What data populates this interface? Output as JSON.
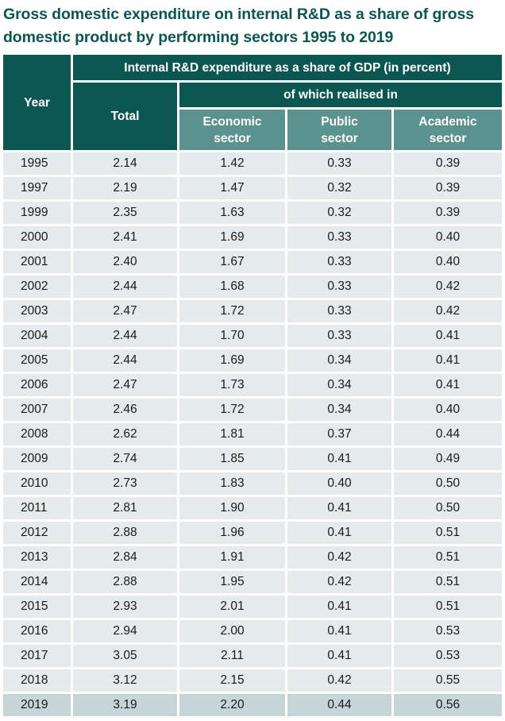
{
  "title": "Gross domestic expenditure on internal R&D as a share of gross domestic product by performing sectors 1995 to 2019",
  "headers": {
    "year": "Year",
    "group": "Internal R&D expenditure as a share of GDP (in percent)",
    "total": "Total",
    "subgroup": "of which realised in",
    "economic_line1": "Economic",
    "economic_line2": "sector",
    "public_line1": "Public",
    "public_line2": "sector",
    "academic_line1": "Academic",
    "academic_line2": "sector"
  },
  "rows": [
    {
      "year": "1995",
      "total": "2.14",
      "economic": "1.42",
      "public": "0.33",
      "academic": "0.39"
    },
    {
      "year": "1997",
      "total": "2.19",
      "economic": "1.47",
      "public": "0.32",
      "academic": "0.39"
    },
    {
      "year": "1999",
      "total": "2.35",
      "economic": "1.63",
      "public": "0.32",
      "academic": "0.39"
    },
    {
      "year": "2000",
      "total": "2.41",
      "economic": "1.69",
      "public": "0.33",
      "academic": "0.40"
    },
    {
      "year": "2001",
      "total": "2.40",
      "economic": "1.67",
      "public": "0.33",
      "academic": "0.40"
    },
    {
      "year": "2002",
      "total": "2.44",
      "economic": "1.68",
      "public": "0.33",
      "academic": "0.42"
    },
    {
      "year": "2003",
      "total": "2.47",
      "economic": "1.72",
      "public": "0.33",
      "academic": "0.42"
    },
    {
      "year": "2004",
      "total": "2.44",
      "economic": "1.70",
      "public": "0.33",
      "academic": "0.41"
    },
    {
      "year": "2005",
      "total": "2.44",
      "economic": "1.69",
      "public": "0.34",
      "academic": "0.41"
    },
    {
      "year": "2006",
      "total": "2.47",
      "economic": "1.73",
      "public": "0.34",
      "academic": "0.41"
    },
    {
      "year": "2007",
      "total": "2.46",
      "economic": "1.72",
      "public": "0.34",
      "academic": "0.40"
    },
    {
      "year": "2008",
      "total": "2.62",
      "economic": "1.81",
      "public": "0.37",
      "academic": "0.44"
    },
    {
      "year": "2009",
      "total": "2.74",
      "economic": "1.85",
      "public": "0.41",
      "academic": "0.49"
    },
    {
      "year": "2010",
      "total": "2.73",
      "economic": "1.83",
      "public": "0.40",
      "academic": "0.50"
    },
    {
      "year": "2011",
      "total": "2.81",
      "economic": "1.90",
      "public": "0.41",
      "academic": "0.50"
    },
    {
      "year": "2012",
      "total": "2.88",
      "economic": "1.96",
      "public": "0.41",
      "academic": "0.51"
    },
    {
      "year": "2013",
      "total": "2.84",
      "economic": "1.91",
      "public": "0.42",
      "academic": "0.51"
    },
    {
      "year": "2014",
      "total": "2.88",
      "economic": "1.95",
      "public": "0.42",
      "academic": "0.51"
    },
    {
      "year": "2015",
      "total": "2.93",
      "economic": "2.01",
      "public": "0.41",
      "academic": "0.51"
    },
    {
      "year": "2016",
      "total": "2.94",
      "economic": "2.00",
      "public": "0.41",
      "academic": "0.53"
    },
    {
      "year": "2017",
      "total": "3.05",
      "economic": "2.11",
      "public": "0.41",
      "academic": "0.53"
    },
    {
      "year": "2018",
      "total": "3.12",
      "economic": "2.15",
      "public": "0.42",
      "academic": "0.55"
    },
    {
      "year": "2019",
      "total": "3.19",
      "economic": "2.20",
      "public": "0.44",
      "academic": "0.56"
    }
  ],
  "colors": {
    "header_dark": "#0c5651",
    "header_light": "#5b9290",
    "row_background": "#e5eaeb",
    "last_row_background": "#c6d5d7",
    "title_color": "#0c5651"
  }
}
